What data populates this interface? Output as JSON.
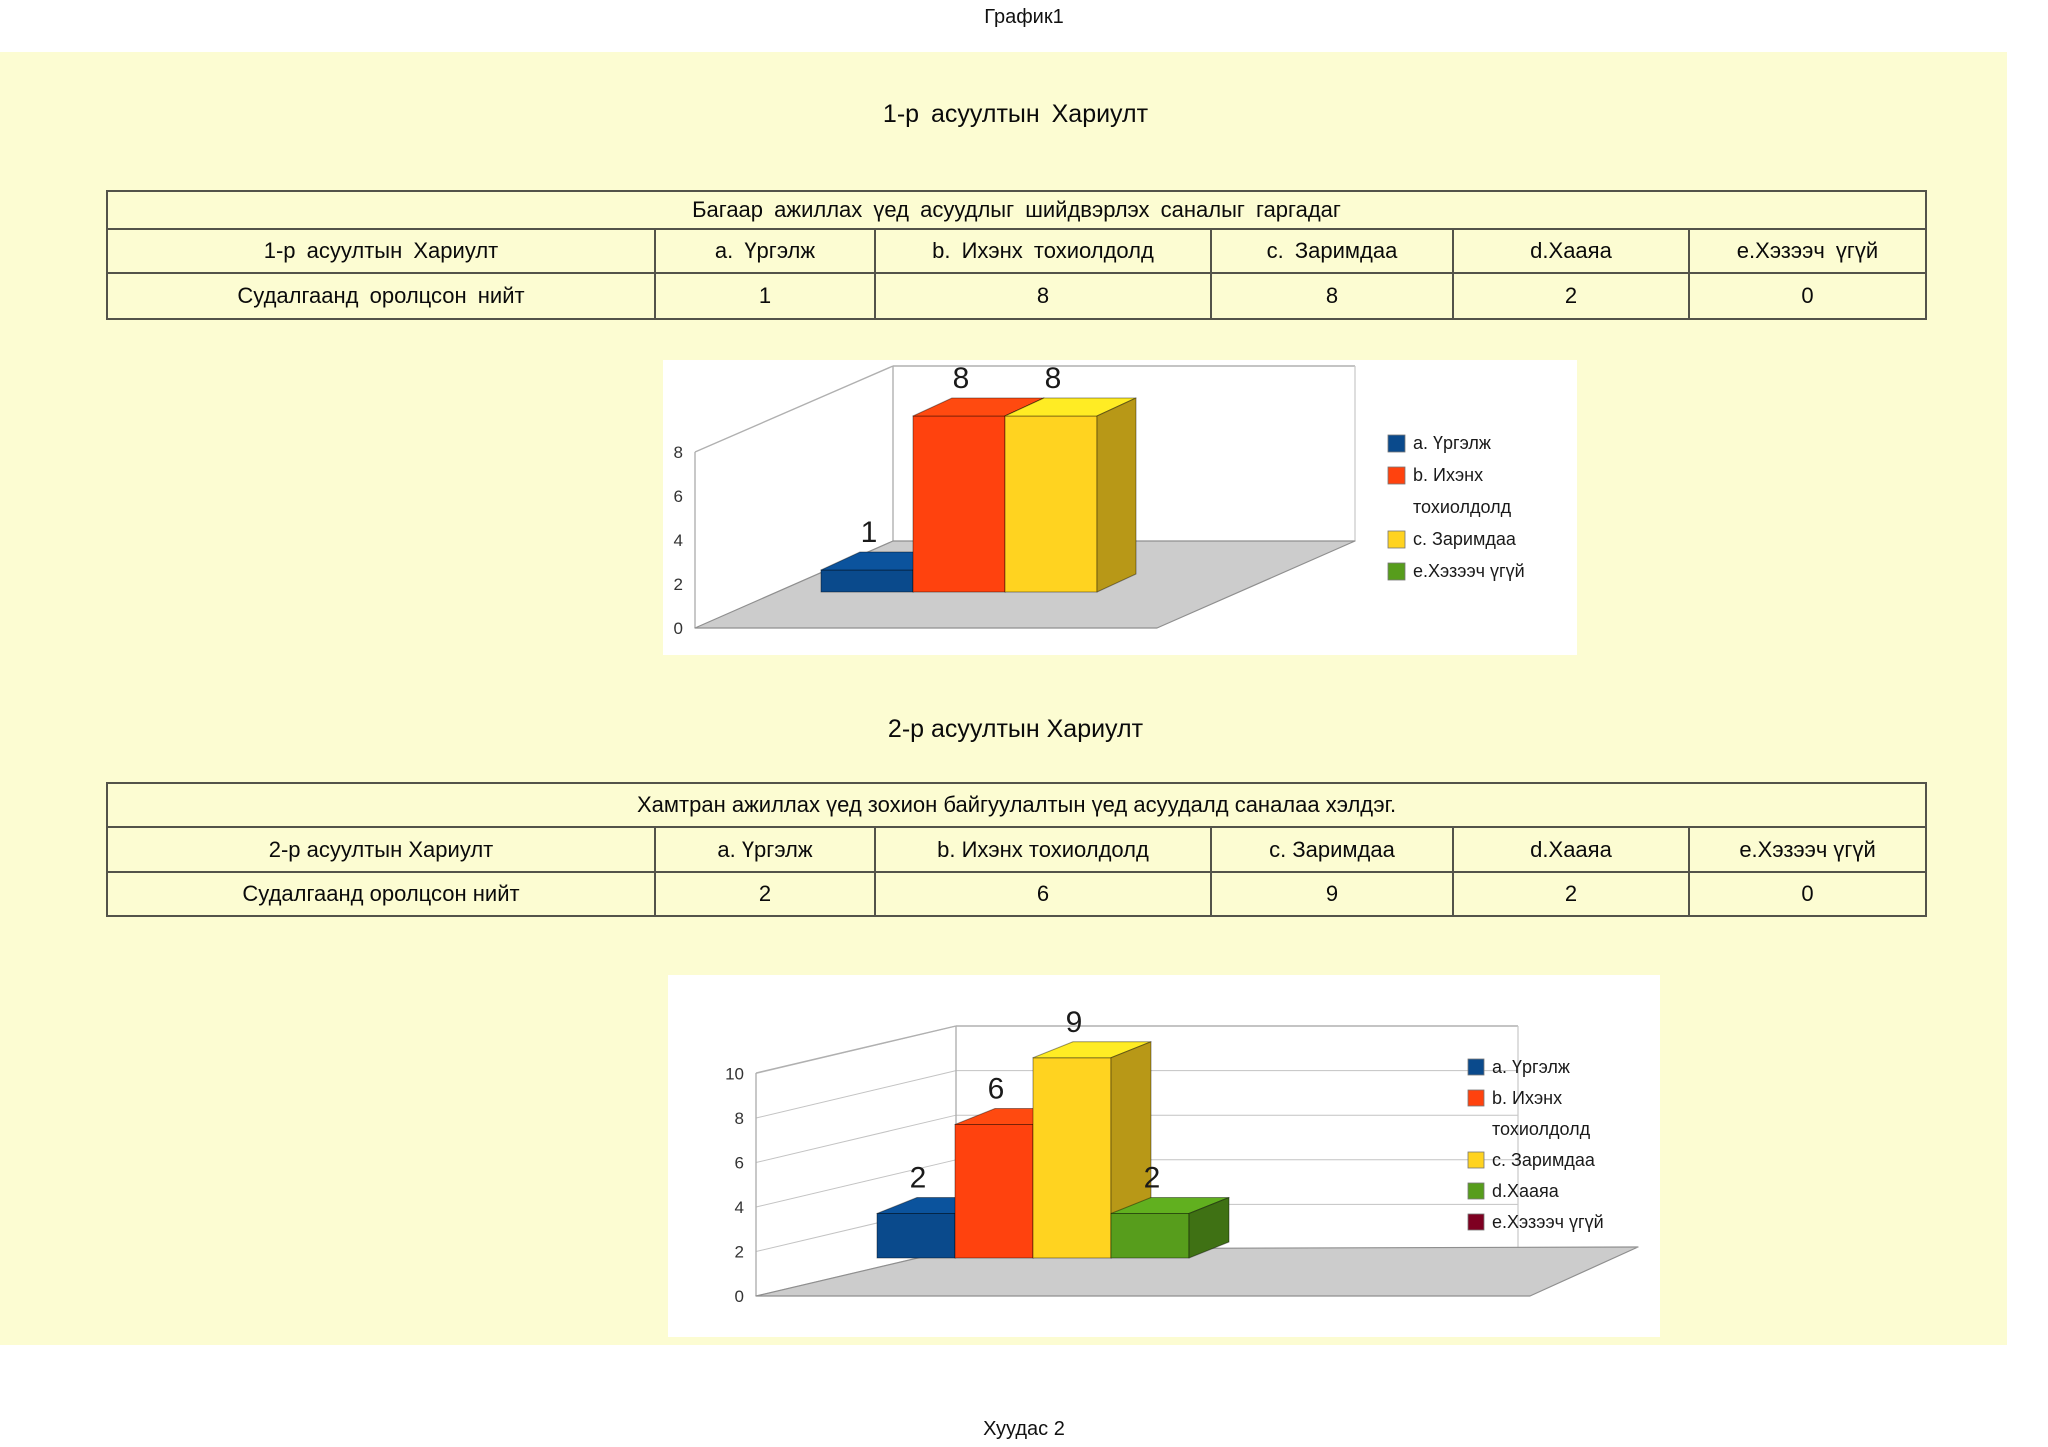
{
  "page": {
    "sheet_tab": "График1",
    "footer": "Хуудас 2",
    "background_color": "#fcfcd2"
  },
  "sections": [
    {
      "title": "1-р асуултын Хариулт",
      "table": {
        "caption": "Багаар ажиллах үед асуудлыг шийдвэрлэх саналыг гаргадаг",
        "header_row": [
          "1-р асуултын Хариулт",
          "a. Үргэлж",
          "b. Ихэнх тохиолдолд",
          "c. Заримдаа",
          "d.Хааяа",
          "e.Хэзээч үгүй"
        ],
        "data_row": [
          "Судалгаанд оролцсон нийт",
          "1",
          "8",
          "8",
          "2",
          "0"
        ]
      }
    },
    {
      "title": "2-р асуултын Хариулт",
      "table": {
        "caption": "Хамтран ажиллах үед зохион байгуулалтын үед асуудалд саналаа хэлдэг.",
        "header_row": [
          "2-р асуултын Хариулт",
          "a. Үргэлж",
          "b. Ихэнх тохиолдолд",
          "c. Заримдаа",
          "d.Хааяа",
          "e.Хэзээч үгүй"
        ],
        "data_row": [
          "Судалгаанд оролцсон нийт",
          "2",
          "6",
          "9",
          "2",
          "0"
        ]
      }
    }
  ],
  "chart_data": [
    {
      "type": "bar",
      "projection": "3d",
      "title": "",
      "categories": [
        "a. Үргэлж",
        "b. Ихэнх тохиолдолд",
        "c. Заримдаа",
        "e.Хэзээч үгүй"
      ],
      "values": [
        1,
        8,
        8,
        0
      ],
      "colors": [
        "#0a4a8c",
        "#ff420e",
        "#ffd320",
        "#579d1c"
      ],
      "legend": [
        "a. Үргэлж",
        "b. Ихэнх тохиолдолд",
        "c. Заримдаа",
        "e.Хэзээч үгүй"
      ],
      "legend_position": "right",
      "yticks": [
        0,
        2,
        4,
        6,
        8
      ],
      "ylim": [
        0,
        8
      ],
      "grid": false,
      "floor_color": "#cccccc",
      "wall_color": "#ffffff"
    },
    {
      "type": "bar",
      "projection": "3d",
      "title": "",
      "categories": [
        "a. Үргэлж",
        "b. Ихэнх тохиолдолд",
        "c. Заримдаа",
        "d.Хааяа",
        "e.Хэзээч үгүй"
      ],
      "values": [
        2,
        6,
        9,
        2,
        0
      ],
      "colors": [
        "#0a4a8c",
        "#ff420e",
        "#ffd320",
        "#579d1c",
        "#7e0021"
      ],
      "legend": [
        "a. Үргэлж",
        "b. Ихэнх тохиолдолд",
        "c. Заримдаа",
        "d.Хааяа",
        "e.Хэзээч үгүй"
      ],
      "legend_position": "right",
      "yticks": [
        0,
        2,
        4,
        6,
        8,
        10
      ],
      "ylim": [
        0,
        10
      ],
      "grid": true,
      "floor_color": "#cccccc",
      "wall_color": "#ffffff"
    }
  ]
}
